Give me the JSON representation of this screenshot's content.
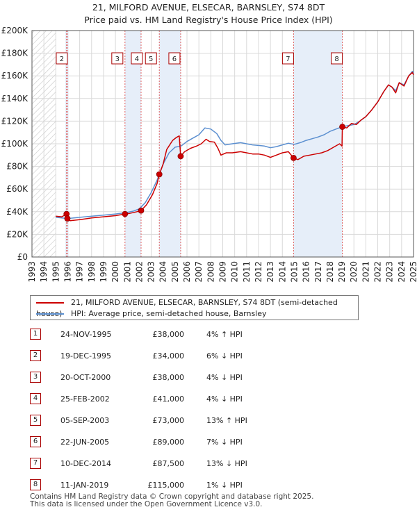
{
  "title_line1": "21, MILFORD AVENUE, ELSECAR, BARNSLEY, S74 8DT",
  "title_line2": "Price paid vs. HM Land Registry's House Price Index (HPI)",
  "chart_data": {
    "type": "line",
    "xlim": [
      1993,
      2025
    ],
    "ylim": [
      0,
      200000
    ],
    "y_ticks": [
      {
        "value": 0,
        "label": "£0"
      },
      {
        "value": 20000,
        "label": "£20K"
      },
      {
        "value": 40000,
        "label": "£40K"
      },
      {
        "value": 60000,
        "label": "£60K"
      },
      {
        "value": 80000,
        "label": "£80K"
      },
      {
        "value": 100000,
        "label": "£100K"
      },
      {
        "value": 120000,
        "label": "£120K"
      },
      {
        "value": 140000,
        "label": "£140K"
      },
      {
        "value": 160000,
        "label": "£160K"
      },
      {
        "value": 180000,
        "label": "£180K"
      },
      {
        "value": 200000,
        "label": "£200K"
      }
    ],
    "x_ticks": [
      "1993",
      "1994",
      "1995",
      "1996",
      "1997",
      "1998",
      "1999",
      "2000",
      "2001",
      "2002",
      "2003",
      "2004",
      "2005",
      "2006",
      "2007",
      "2008",
      "2009",
      "2010",
      "2011",
      "2012",
      "2013",
      "2014",
      "2015",
      "2016",
      "2017",
      "2018",
      "2019",
      "2020",
      "2021",
      "2022",
      "2023",
      "2024",
      "2025"
    ],
    "grid": true,
    "hatched_before": 1995.0,
    "legend_position": "below",
    "series": [
      {
        "name": "21, MILFORD AVENUE, ELSECAR, BARNSLEY, S74 8DT (semi-detached house)",
        "color": "#cc0000",
        "points": [
          [
            1995.0,
            36000
          ],
          [
            1995.5,
            35500
          ],
          [
            1995.9,
            38000
          ],
          [
            1995.97,
            34000
          ],
          [
            1996.2,
            32000
          ],
          [
            1997,
            33000
          ],
          [
            1998,
            34500
          ],
          [
            1999,
            35500
          ],
          [
            2000,
            36500
          ],
          [
            2000.8,
            38000
          ],
          [
            2001.2,
            38500
          ],
          [
            2001.8,
            40000
          ],
          [
            2002.15,
            41000
          ],
          [
            2002.6,
            46000
          ],
          [
            2003.1,
            55000
          ],
          [
            2003.5,
            65000
          ],
          [
            2003.68,
            73000
          ],
          [
            2004.0,
            82000
          ],
          [
            2004.3,
            95000
          ],
          [
            2004.8,
            103000
          ],
          [
            2005.1,
            105500
          ],
          [
            2005.35,
            107000
          ],
          [
            2005.47,
            89000
          ],
          [
            2005.8,
            93000
          ],
          [
            2006.3,
            96000
          ],
          [
            2006.8,
            98000
          ],
          [
            2007.2,
            100000
          ],
          [
            2007.6,
            104000
          ],
          [
            2007.9,
            102000
          ],
          [
            2008.3,
            101500
          ],
          [
            2008.6,
            96000
          ],
          [
            2008.85,
            90000
          ],
          [
            2009.3,
            92000
          ],
          [
            2009.8,
            92000
          ],
          [
            2010.5,
            93000
          ],
          [
            2011,
            92000
          ],
          [
            2011.5,
            91000
          ],
          [
            2012,
            91000
          ],
          [
            2012.5,
            90000
          ],
          [
            2013,
            88000
          ],
          [
            2013.5,
            90000
          ],
          [
            2014,
            92000
          ],
          [
            2014.5,
            93000
          ],
          [
            2014.94,
            87500
          ],
          [
            2015.3,
            86000
          ],
          [
            2015.8,
            89000
          ],
          [
            2016.3,
            90000
          ],
          [
            2016.8,
            91000
          ],
          [
            2017.3,
            92000
          ],
          [
            2017.8,
            94000
          ],
          [
            2018.3,
            97000
          ],
          [
            2018.8,
            100000
          ],
          [
            2019.0,
            98000
          ],
          [
            2019.03,
            115000
          ],
          [
            2019.4,
            114000
          ],
          [
            2019.8,
            118000
          ],
          [
            2020.2,
            117000
          ],
          [
            2020.6,
            121000
          ],
          [
            2021.0,
            124000
          ],
          [
            2021.5,
            130000
          ],
          [
            2022.0,
            137000
          ],
          [
            2022.5,
            146000
          ],
          [
            2022.9,
            152000
          ],
          [
            2023.2,
            150000
          ],
          [
            2023.5,
            145000
          ],
          [
            2023.8,
            154000
          ],
          [
            2024.2,
            151000
          ],
          [
            2024.6,
            160000
          ],
          [
            2024.9,
            163000
          ],
          [
            2025.0,
            161000
          ]
        ]
      },
      {
        "name": "HPI: Average price, semi-detached house, Barnsley",
        "color": "#5b8fd0",
        "points": [
          [
            1995.0,
            35000
          ],
          [
            1995.5,
            34500
          ],
          [
            1996,
            34000
          ],
          [
            1997,
            35000
          ],
          [
            1998,
            36000
          ],
          [
            1999,
            37000
          ],
          [
            2000,
            38000
          ],
          [
            2000.8,
            39000
          ],
          [
            2001.5,
            40500
          ],
          [
            2002,
            42500
          ],
          [
            2002.5,
            48000
          ],
          [
            2003,
            57000
          ],
          [
            2003.5,
            68000
          ],
          [
            2004,
            82000
          ],
          [
            2004.5,
            92000
          ],
          [
            2005,
            97000
          ],
          [
            2005.5,
            98000
          ],
          [
            2006,
            102000
          ],
          [
            2006.5,
            105000
          ],
          [
            2007,
            108000
          ],
          [
            2007.5,
            114000
          ],
          [
            2008,
            113000
          ],
          [
            2008.5,
            109000
          ],
          [
            2008.85,
            103000
          ],
          [
            2009.2,
            99000
          ],
          [
            2009.8,
            100000
          ],
          [
            2010.5,
            101000
          ],
          [
            2011,
            100000
          ],
          [
            2011.5,
            99000
          ],
          [
            2012,
            98500
          ],
          [
            2012.5,
            98000
          ],
          [
            2013,
            96500
          ],
          [
            2013.5,
            97500
          ],
          [
            2014,
            99000
          ],
          [
            2014.5,
            100500
          ],
          [
            2015,
            99500
          ],
          [
            2015.5,
            101000
          ],
          [
            2016,
            103000
          ],
          [
            2016.5,
            104500
          ],
          [
            2017,
            106000
          ],
          [
            2017.5,
            108000
          ],
          [
            2018,
            111000
          ],
          [
            2018.5,
            113000
          ],
          [
            2019,
            115000
          ],
          [
            2019.5,
            116000
          ],
          [
            2020,
            117000
          ],
          [
            2020.5,
            120000
          ],
          [
            2021,
            124000
          ],
          [
            2021.5,
            130000
          ],
          [
            2022,
            137000
          ],
          [
            2022.5,
            146000
          ],
          [
            2022.9,
            152000
          ],
          [
            2023.2,
            150000
          ],
          [
            2023.5,
            147000
          ],
          [
            2023.8,
            154000
          ],
          [
            2024.2,
            152000
          ],
          [
            2024.6,
            160000
          ],
          [
            2024.9,
            164000
          ],
          [
            2025.0,
            162000
          ]
        ]
      }
    ],
    "sales": [
      {
        "n": "1",
        "t": 1995.9,
        "price": 38000
      },
      {
        "n": "2",
        "t": 1995.97,
        "price": 34000
      },
      {
        "n": "3",
        "t": 2000.8,
        "price": 38000
      },
      {
        "n": "4",
        "t": 2002.15,
        "price": 41000
      },
      {
        "n": "5",
        "t": 2003.68,
        "price": 73000
      },
      {
        "n": "6",
        "t": 2005.47,
        "price": 89000
      },
      {
        "n": "7",
        "t": 2014.94,
        "price": 87500
      },
      {
        "n": "8",
        "t": 2019.03,
        "price": 115000
      }
    ],
    "markers_labeled": [
      "2",
      "3",
      "4",
      "5",
      "6",
      "7",
      "8"
    ]
  },
  "table": [
    {
      "n": "1",
      "date": "24-NOV-1995",
      "price": "£38,000",
      "hpi": "4% ↑ HPI"
    },
    {
      "n": "2",
      "date": "19-DEC-1995",
      "price": "£34,000",
      "hpi": "6% ↓ HPI"
    },
    {
      "n": "3",
      "date": "20-OCT-2000",
      "price": "£38,000",
      "hpi": "4% ↓ HPI"
    },
    {
      "n": "4",
      "date": "25-FEB-2002",
      "price": "£41,000",
      "hpi": "4% ↓ HPI"
    },
    {
      "n": "5",
      "date": "05-SEP-2003",
      "price": "£73,000",
      "hpi": "13% ↑ HPI"
    },
    {
      "n": "6",
      "date": "22-JUN-2005",
      "price": "£89,000",
      "hpi": "7% ↓ HPI"
    },
    {
      "n": "7",
      "date": "10-DEC-2014",
      "price": "£87,500",
      "hpi": "13% ↓ HPI"
    },
    {
      "n": "8",
      "date": "11-JAN-2019",
      "price": "£115,000",
      "hpi": "1% ↓ HPI"
    }
  ],
  "footer_line1": "Contains HM Land Registry data © Crown copyright and database right 2025.",
  "footer_line2": "This data is licensed under the Open Government Licence v3.0."
}
